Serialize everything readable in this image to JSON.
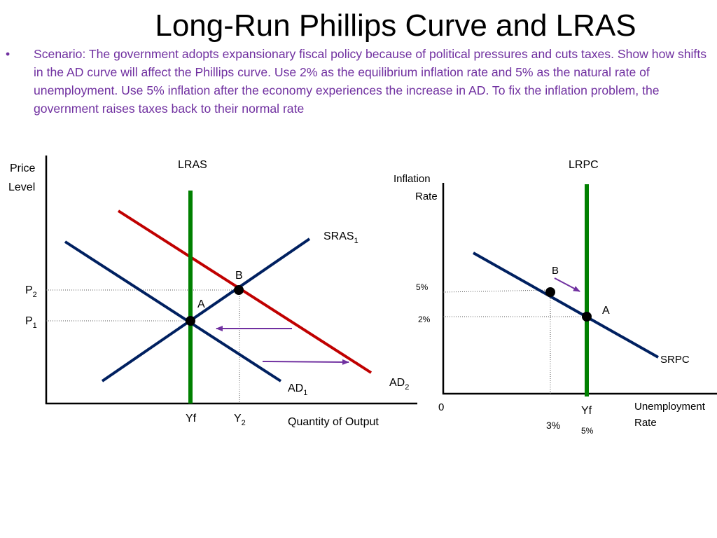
{
  "title": "Long-Run Phillips Curve and LRAS",
  "scenario": {
    "bullet": "•",
    "text": "Scenario:  The government adopts expansionary fiscal policy because of political pressures and cuts taxes. Show how shifts in the AD curve will affect the Phillips curve. Use 2% as the equilibrium inflation rate and 5% as the natural rate of unemployment. Use 5% inflation after the economy experiences the increase in AD. To fix the inflation problem, the government raises taxes back to their normal rate"
  },
  "colors": {
    "scenario_text": "#7030a0",
    "lras": "#008000",
    "lrpc": "#008000",
    "ad2": "#c00000",
    "curves": "#002060",
    "arrows": "#7030a0"
  },
  "left_graph": {
    "y_axis_label_line1": "Price",
    "y_axis_label_line2": "Level",
    "x_axis_label": "Quantity of Output",
    "lras_label": "LRAS",
    "sras_label": "SRAS",
    "sras_sub": "1",
    "ad1_label": "AD",
    "ad1_sub": "1",
    "ad2_label": "AD",
    "ad2_sub": "2",
    "point_a": "A",
    "point_b": "B",
    "p2": "P",
    "p2_sub": "2",
    "p1": "P",
    "p1_sub": "1",
    "yf": "Yf",
    "y2": "Y",
    "y2_sub": "2"
  },
  "right_graph": {
    "y_axis_label_line1": "Inflation",
    "y_axis_label_line2": "Rate",
    "x_axis_label_line1": "Unemployment",
    "x_axis_label_line2": "Rate",
    "lrpc_label": "LRPC",
    "srpc_label": "SRPC",
    "point_a": "A",
    "point_b": "B",
    "tick_5": "5%",
    "tick_2": "2%",
    "origin": "0",
    "yf": "Yf",
    "unemp_3": "3%",
    "unemp_5": "5%"
  }
}
